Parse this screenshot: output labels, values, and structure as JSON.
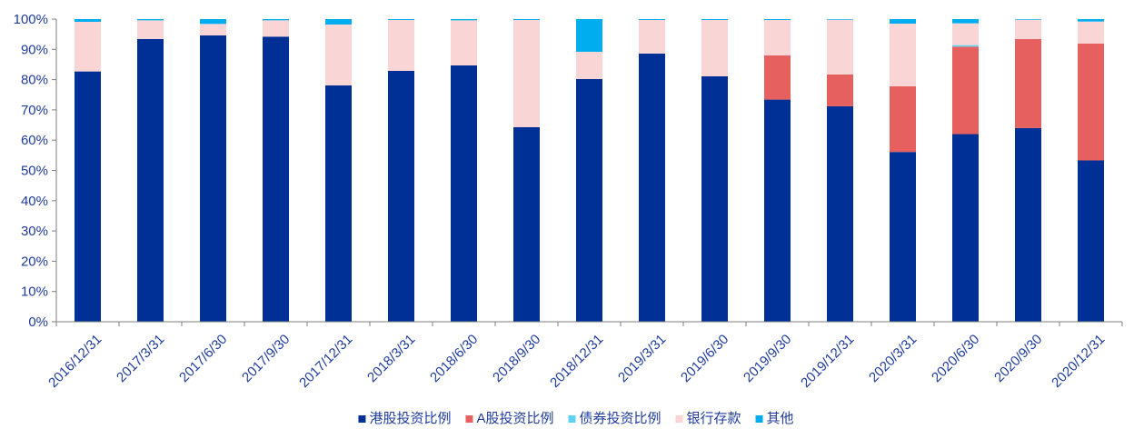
{
  "chart_data": {
    "type": "bar",
    "stacked": true,
    "categories": [
      "2016/12/31",
      "2017/3/31",
      "2017/6/30",
      "2017/9/30",
      "2017/12/31",
      "2018/3/31",
      "2018/6/30",
      "2018/9/30",
      "2018/12/31",
      "2019/3/31",
      "2019/6/30",
      "2019/9/30",
      "2019/12/31",
      "2020/3/31",
      "2020/6/30",
      "2020/9/30",
      "2020/12/31"
    ],
    "series": [
      {
        "name": "港股投资比例",
        "color": "#002F96",
        "values": [
          82.7,
          93.4,
          94.6,
          94.2,
          78.1,
          82.9,
          84.7,
          64.3,
          80.2,
          88.6,
          81.1,
          73.4,
          71.2,
          56.1,
          62.0,
          64.0,
          53.3
        ]
      },
      {
        "name": "A股投资比例",
        "color": "#E5605E",
        "values": [
          0,
          0,
          0,
          0,
          0,
          0,
          0,
          0,
          0,
          0,
          0,
          14.6,
          10.5,
          21.7,
          28.9,
          29.4,
          38.6
        ]
      },
      {
        "name": "债券投资比例",
        "color": "#5DD3F3",
        "values": [
          0,
          0,
          0,
          0,
          0,
          0,
          0,
          0,
          0,
          0,
          0,
          0,
          0,
          0,
          0.5,
          0,
          0
        ]
      },
      {
        "name": "银行存款",
        "color": "#F9D5D6",
        "values": [
          16.4,
          6.2,
          3.8,
          5.4,
          20.1,
          16.8,
          14.9,
          35.4,
          9.0,
          11.1,
          18.6,
          11.7,
          18.1,
          20.7,
          7.2,
          6.4,
          7.3
        ]
      },
      {
        "name": "其他",
        "color": "#00AEEF",
        "values": [
          0.9,
          0.4,
          1.6,
          0.4,
          1.8,
          0.3,
          0.4,
          0.3,
          10.8,
          0.3,
          0.3,
          0.3,
          0.2,
          1.5,
          1.4,
          0.2,
          0.8
        ]
      }
    ],
    "ylim": [
      0,
      100
    ],
    "yticks": [
      "0%",
      "10%",
      "20%",
      "30%",
      "40%",
      "50%",
      "60%",
      "70%",
      "80%",
      "90%",
      "100%"
    ],
    "grid": false,
    "legend_position": "bottom-center"
  }
}
